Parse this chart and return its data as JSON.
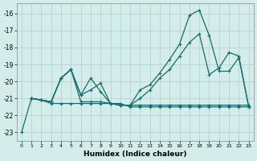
{
  "xlabel": "Humidex (Indice chaleur)",
  "bg_color": "#d4ecea",
  "line_color": "#1a6b6b",
  "grid_color": "#aecece",
  "xlim": [
    -0.5,
    23.5
  ],
  "ylim": [
    -23.5,
    -15.4
  ],
  "yticks": [
    -23,
    -22,
    -21,
    -20,
    -19,
    -18,
    -17,
    -16
  ],
  "xticks": [
    0,
    1,
    2,
    3,
    4,
    5,
    6,
    7,
    8,
    9,
    10,
    11,
    12,
    13,
    14,
    15,
    16,
    17,
    18,
    19,
    20,
    21,
    22,
    23
  ],
  "line1_x": [
    0,
    1,
    2,
    3,
    4,
    5,
    6,
    7,
    8,
    9,
    10,
    11,
    12,
    13,
    14,
    15,
    16,
    17,
    18,
    19,
    20,
    21,
    22,
    23
  ],
  "line1_y": [
    -23.0,
    -21.0,
    -21.1,
    -21.3,
    -21.3,
    -21.3,
    -21.3,
    -21.3,
    -21.3,
    -21.3,
    -21.3,
    -21.5,
    -21.5,
    -21.5,
    -21.5,
    -21.5,
    -21.5,
    -21.5,
    -21.5,
    -21.5,
    -21.5,
    -21.5,
    -21.5,
    -21.5
  ],
  "line2_x": [
    1,
    2,
    3,
    4,
    5,
    6,
    7,
    8,
    9,
    10,
    11,
    12,
    13,
    14,
    15,
    16,
    17,
    18,
    19,
    20,
    21,
    22,
    23
  ],
  "line2_y": [
    -21.0,
    -21.1,
    -21.2,
    -19.8,
    -19.3,
    -21.2,
    -21.2,
    -21.2,
    -21.3,
    -21.4,
    -21.4,
    -21.4,
    -21.4,
    -21.4,
    -21.4,
    -21.4,
    -21.4,
    -21.4,
    -21.4,
    -21.4,
    -21.4,
    -21.4,
    -21.4
  ],
  "line3_x": [
    1,
    2,
    3,
    4,
    5,
    6,
    7,
    8,
    9,
    10,
    11,
    12,
    13,
    14,
    15,
    16,
    17,
    18,
    19,
    20,
    21,
    22,
    23
  ],
  "line3_y": [
    -21.0,
    -21.1,
    -21.2,
    -19.8,
    -19.3,
    -20.8,
    -19.8,
    -20.6,
    -21.3,
    -21.4,
    -21.4,
    -20.5,
    -20.2,
    -19.5,
    -18.7,
    -17.8,
    -16.1,
    -15.8,
    -17.3,
    -19.4,
    -19.4,
    -18.6,
    -21.5
  ],
  "line4_x": [
    1,
    2,
    3,
    4,
    5,
    6,
    7,
    8,
    9,
    10,
    11,
    12,
    13,
    14,
    15,
    16,
    17,
    18,
    19,
    20,
    21,
    22,
    23
  ],
  "line4_y": [
    -21.0,
    -21.1,
    -21.2,
    -19.8,
    -19.3,
    -20.8,
    -20.5,
    -20.1,
    -21.3,
    -21.4,
    -21.4,
    -21.0,
    -20.5,
    -19.8,
    -19.3,
    -18.5,
    -17.7,
    -17.2,
    -19.6,
    -19.2,
    -18.3,
    -18.5,
    -21.5
  ]
}
